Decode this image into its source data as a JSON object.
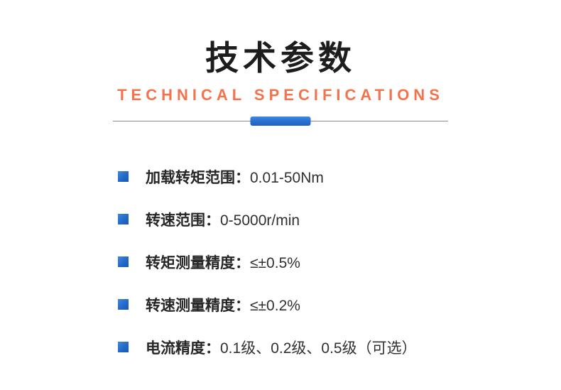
{
  "header": {
    "title": "技术参数",
    "subtitle": "TECHNICAL SPECIFICATIONS"
  },
  "colors": {
    "accent_blue": "#2a72cf",
    "accent_orange": "#f4724c",
    "divider_gray": "#8a8a8a",
    "title_black": "#1d1d1d"
  },
  "icons": {
    "bullet": "blue-square"
  },
  "specs": {
    "items": [
      {
        "label": "加载转矩范围：",
        "value": "0.01-50Nm"
      },
      {
        "label": "转速范围：",
        "value": "0-5000r/min"
      },
      {
        "label": "转矩测量精度：",
        "value": "≤±0.5%"
      },
      {
        "label": "转速测量精度：",
        "value": "≤±0.2%"
      },
      {
        "label": "电流精度：",
        "value": "0.1级、0.2级、0.5级（可选）"
      }
    ]
  }
}
